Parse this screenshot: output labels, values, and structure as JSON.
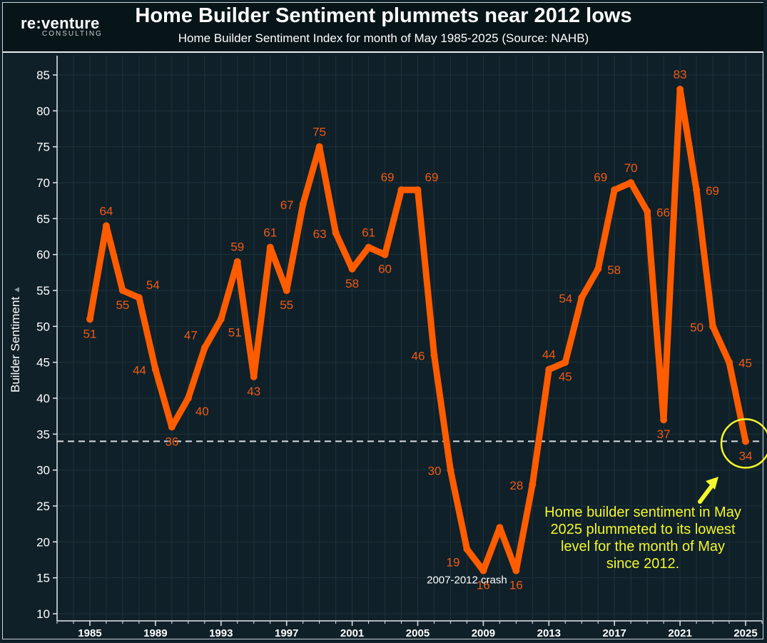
{
  "header": {
    "logo_main": "re:venture",
    "logo_sub": "CONSULTING"
  },
  "chart_data": {
    "type": "line",
    "title": "Home Builder Sentiment plummets near 2012 lows",
    "subtitle": "Home Builder Sentiment Index for month of May 1985-2025 (Source: NAHB)",
    "xlabel": "",
    "ylabel": "Builder Sentiment",
    "ylim": [
      10,
      85
    ],
    "yticks": [
      10,
      15,
      20,
      25,
      30,
      35,
      40,
      45,
      50,
      55,
      60,
      65,
      70,
      75,
      80,
      85
    ],
    "xlim": [
      1983,
      2026
    ],
    "xticks": [
      1985,
      1989,
      1993,
      1997,
      2001,
      2005,
      2009,
      2013,
      2017,
      2021,
      2025
    ],
    "grid": true,
    "series": [
      {
        "name": "Builder Sentiment",
        "color": "#ff5c00",
        "x": [
          1985,
          1986,
          1987,
          1988,
          1989,
          1990,
          1991,
          1992,
          1993,
          1994,
          1995,
          1996,
          1997,
          1998,
          1999,
          2000,
          2001,
          2002,
          2003,
          2004,
          2005,
          2006,
          2007,
          2008,
          2009,
          2010,
          2011,
          2012,
          2013,
          2014,
          2015,
          2016,
          2017,
          2018,
          2019,
          2020,
          2021,
          2022,
          2023,
          2024,
          2025
        ],
        "values": [
          51,
          64,
          55,
          54,
          44,
          36,
          40,
          47,
          51,
          59,
          43,
          61,
          55,
          67,
          75,
          63,
          58,
          61,
          60,
          69,
          69,
          46,
          30,
          19,
          16,
          22,
          16,
          28,
          44,
          45,
          54,
          58,
          69,
          70,
          66,
          37,
          83,
          69,
          50,
          45,
          34
        ]
      }
    ],
    "data_labels": [
      {
        "x": 1985,
        "text": "51",
        "pos": "below"
      },
      {
        "x": 1986,
        "text": "64",
        "pos": "above"
      },
      {
        "x": 1987,
        "text": "55",
        "pos": "below"
      },
      {
        "x": 1988,
        "text": "54",
        "pos": "above-right"
      },
      {
        "x": 1989,
        "text": "44",
        "pos": "left"
      },
      {
        "x": 1990,
        "text": "36",
        "pos": "below"
      },
      {
        "x": 1991,
        "text": "40",
        "pos": "below-right"
      },
      {
        "x": 1992,
        "text": "47",
        "pos": "above-left"
      },
      {
        "x": 1993,
        "text": "51",
        "pos": "below-right"
      },
      {
        "x": 1994,
        "text": "59",
        "pos": "above"
      },
      {
        "x": 1995,
        "text": "43",
        "pos": "below"
      },
      {
        "x": 1996,
        "text": "61",
        "pos": "above"
      },
      {
        "x": 1997,
        "text": "55",
        "pos": "below"
      },
      {
        "x": 1998,
        "text": "67",
        "pos": "left"
      },
      {
        "x": 1999,
        "text": "75",
        "pos": "above"
      },
      {
        "x": 2000,
        "text": "63",
        "pos": "left"
      },
      {
        "x": 2001,
        "text": "58",
        "pos": "below"
      },
      {
        "x": 2002,
        "text": "61",
        "pos": "above"
      },
      {
        "x": 2003,
        "text": "60",
        "pos": "below"
      },
      {
        "x": 2004,
        "text": "69",
        "pos": "above-left"
      },
      {
        "x": 2005,
        "text": "69",
        "pos": "above-right"
      },
      {
        "x": 2006,
        "text": "46",
        "pos": "left"
      },
      {
        "x": 2007,
        "text": "30",
        "pos": "left"
      },
      {
        "x": 2008,
        "text": "19",
        "pos": "below-left"
      },
      {
        "x": 2009,
        "text": "16",
        "pos": "below"
      },
      {
        "x": 2011,
        "text": "16",
        "pos": "below"
      },
      {
        "x": 2012,
        "text": "28",
        "pos": "left"
      },
      {
        "x": 2013,
        "text": "44",
        "pos": "above"
      },
      {
        "x": 2014,
        "text": "45",
        "pos": "below"
      },
      {
        "x": 2015,
        "text": "54",
        "pos": "left"
      },
      {
        "x": 2016,
        "text": "58",
        "pos": "right"
      },
      {
        "x": 2017,
        "text": "69",
        "pos": "above-left"
      },
      {
        "x": 2018,
        "text": "70",
        "pos": "above"
      },
      {
        "x": 2019,
        "text": "66",
        "pos": "right"
      },
      {
        "x": 2020,
        "text": "37",
        "pos": "below"
      },
      {
        "x": 2021,
        "text": "83",
        "pos": "above"
      },
      {
        "x": 2022,
        "text": "69",
        "pos": "right"
      },
      {
        "x": 2023,
        "text": "50",
        "pos": "left"
      },
      {
        "x": 2024,
        "text": "45",
        "pos": "right"
      },
      {
        "x": 2025,
        "text": "34",
        "pos": "below"
      }
    ],
    "reference_line": {
      "value": 34
    },
    "annotations": {
      "crash_label": "2007-2012 crash",
      "callout": "Home builder sentiment in May 2025 plummeted to its lowest level for the month of May since 2012."
    },
    "colors": {
      "line": "#ff5c00",
      "label": "#f05a14",
      "grid": "#1f323b",
      "highlight": "#f4f72a",
      "reference": "#d9dde0"
    }
  }
}
